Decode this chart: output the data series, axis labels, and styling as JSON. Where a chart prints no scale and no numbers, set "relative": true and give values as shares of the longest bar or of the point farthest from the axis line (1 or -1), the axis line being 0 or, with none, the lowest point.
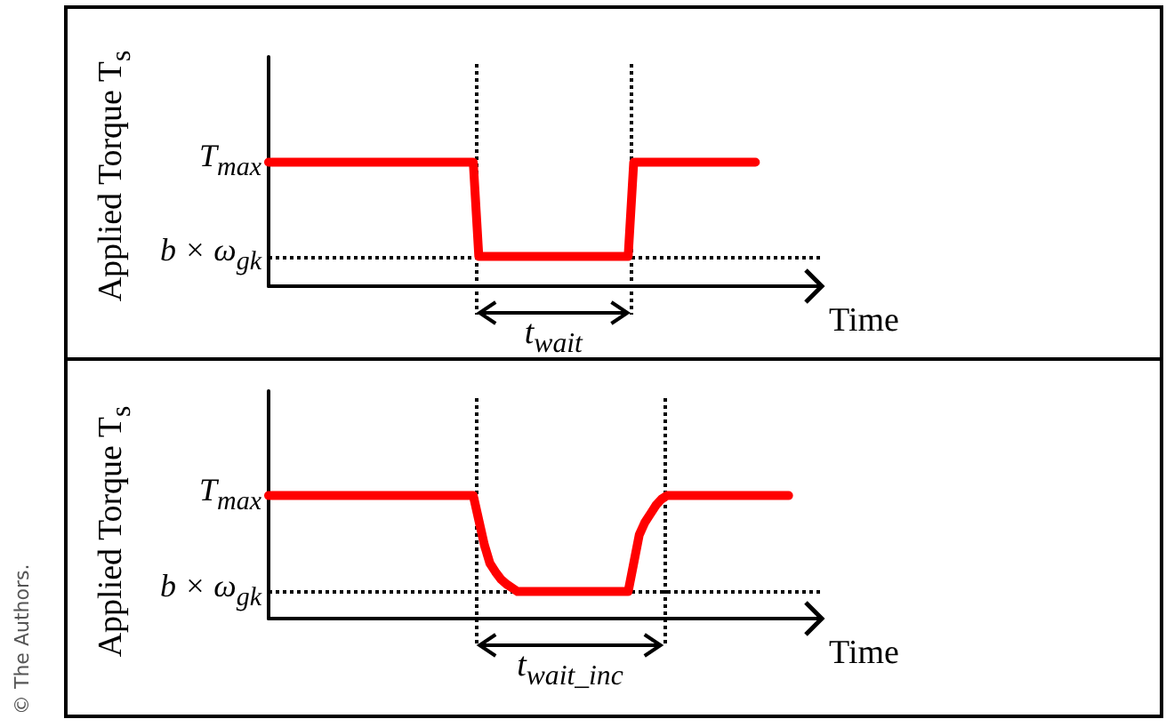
{
  "chart_data": [
    {
      "type": "line",
      "xlabel": "Time",
      "ylabel": "Applied Torque T$_{s}$",
      "categories": [
        null,
        null,
        null,
        null,
        null,
        null,
        null,
        null,
        null,
        null,
        null,
        null,
        null,
        null,
        null,
        null,
        null,
        null,
        null,
        null,
        null,
        null,
        null,
        null,
        null,
        null,
        null,
        null,
        null,
        null,
        null,
        null,
        null,
        null,
        null,
        null,
        null,
        null,
        null,
        null,
        null,
        null,
        null,
        null,
        null,
        null,
        null,
        null,
        null,
        null,
        null,
        null,
        null,
        null,
        null,
        null,
        null,
        null,
        null,
        null,
        null,
        null,
        null,
        null,
        null,
        null,
        null,
        null,
        null,
        null,
        null,
        null,
        null,
        null,
        null,
        null,
        null,
        null,
        null,
        null,
        null,
        null,
        null,
        null,
        null,
        null,
        null,
        null,
        null,
        null,
        null,
        null,
        null,
        null,
        null,
        null,
        null,
        null,
        null,
        null,
        null
      ],
      "values": [
        1,
        1,
        1,
        1,
        1,
        1,
        1,
        1,
        1,
        1,
        1,
        1,
        1,
        1,
        1,
        1,
        1,
        1,
        1,
        1,
        1,
        1,
        1,
        1,
        1,
        1,
        1,
        1,
        1,
        1,
        1,
        1,
        1,
        1,
        1,
        1,
        1,
        1,
        0.24,
        0.24,
        0.24,
        0.24,
        0.24,
        0.24,
        0.24,
        0.24,
        0.24,
        0.24,
        0.24,
        0.24,
        0.24,
        0.24,
        0.24,
        0.24,
        0.24,
        0.24,
        0.24,
        0.24,
        0.24,
        0.24,
        0.24,
        0.24,
        0.24,
        0.24,
        0.24,
        0.24,
        1,
        1,
        1,
        1,
        1,
        1,
        1,
        1,
        1,
        1,
        1,
        1,
        1,
        1,
        1,
        1,
        1,
        1,
        1,
        1,
        1,
        1,
        1,
        null,
        null,
        null,
        null,
        null,
        null,
        null,
        null,
        null,
        null,
        null,
        null
      ],
      "color": "#ff0000",
      "marker": "none",
      "grid": false,
      "relative": true,
      "ref_lines": [
        {
          "axis": "y",
          "value": 0.24,
          "label": "b × ω$_{gk}$",
          "line_style": "dotted"
        }
      ],
      "annotations": [
        "t$_{wait}$",
        "T$_{max}$",
        "© The Authors."
      ]
    },
    {
      "type": "line",
      "xlabel": "Time",
      "ylabel": "Applied Torque T$_{s}$",
      "categories": [
        null,
        null,
        null,
        null,
        null,
        null,
        null,
        null,
        null,
        null,
        null,
        null,
        null,
        null,
        null,
        null,
        null,
        null,
        null,
        null,
        null,
        null,
        null,
        null,
        null,
        null,
        null,
        null,
        null,
        null,
        null,
        null,
        null,
        null,
        null,
        null,
        null,
        null,
        null,
        null,
        null,
        null,
        null,
        null,
        null,
        null,
        null,
        null,
        null,
        null,
        null,
        null,
        null,
        null,
        null,
        null,
        null,
        null,
        null,
        null,
        null,
        null,
        null,
        null,
        null,
        null,
        null,
        null,
        null,
        null,
        null,
        null,
        null,
        null,
        null,
        null,
        null,
        null,
        null,
        null,
        null,
        null,
        null,
        null,
        null,
        null,
        null,
        null,
        null,
        null,
        null,
        null,
        null,
        null,
        null,
        null,
        null,
        null,
        null,
        null,
        null
      ],
      "values": [
        1,
        1,
        1,
        1,
        1,
        1,
        1,
        1,
        1,
        1,
        1,
        1,
        1,
        1,
        1,
        1,
        1,
        1,
        1,
        1,
        1,
        1,
        1,
        1,
        1,
        1,
        1,
        1,
        1,
        1,
        1,
        1,
        1,
        1,
        1,
        1,
        1,
        1,
        0.8,
        0.6,
        0.45,
        0.38,
        0.32,
        0.28,
        0.25,
        0.22,
        0.22,
        0.22,
        0.22,
        0.22,
        0.22,
        0.22,
        0.22,
        0.22,
        0.22,
        0.22,
        0.22,
        0.22,
        0.22,
        0.22,
        0.22,
        0.22,
        0.22,
        0.22,
        0.22,
        0.22,
        0.45,
        0.68,
        0.78,
        0.85,
        0.92,
        0.97,
        1,
        1,
        1,
        1,
        1,
        1,
        1,
        1,
        1,
        1,
        1,
        1,
        1,
        1,
        1,
        1,
        1,
        1,
        1,
        1,
        1,
        1,
        1,
        null,
        null,
        null,
        null,
        null,
        null
      ],
      "color": "#ff0000",
      "marker": "none",
      "grid": false,
      "relative": true,
      "ref_lines": [
        {
          "axis": "y",
          "value": 0.22,
          "label": "b × ω$_{gk}$",
          "line_style": "dotted"
        }
      ],
      "annotations": [
        "t$_{wait_inc}$",
        "T$_{max}$"
      ]
    }
  ]
}
